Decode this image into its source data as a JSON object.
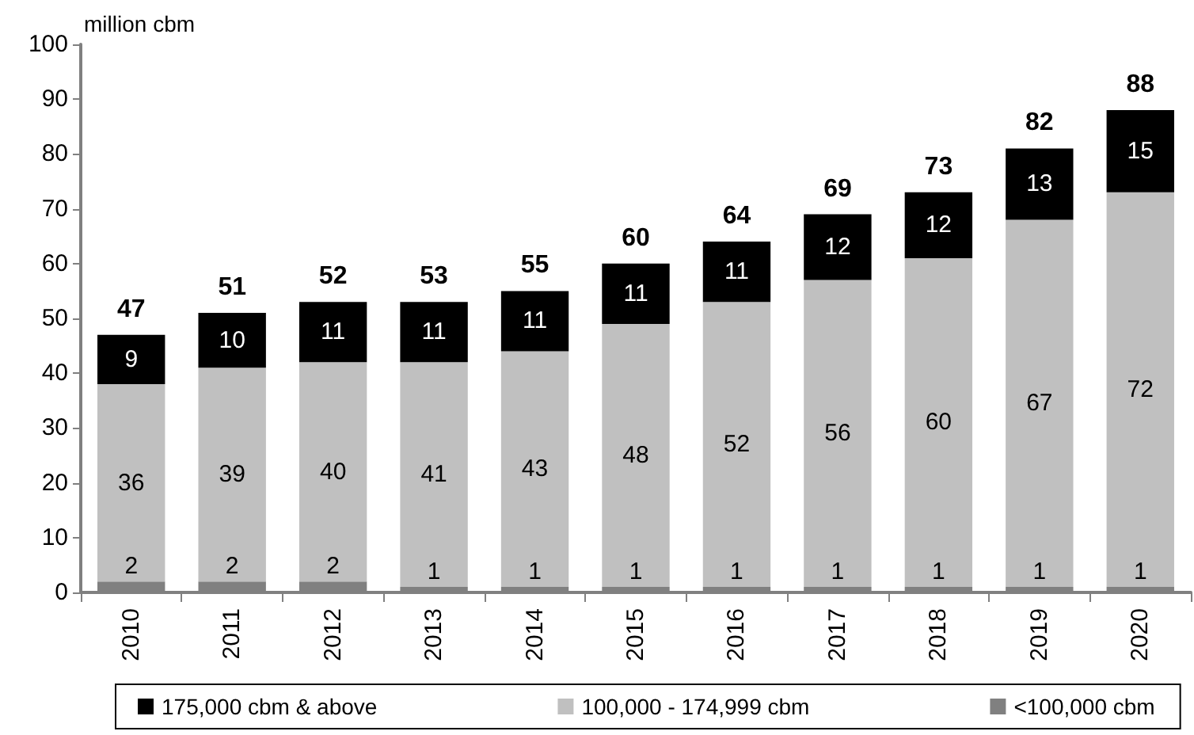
{
  "chart_data": {
    "type": "bar",
    "stacked": true,
    "ylabel": "million cbm",
    "categories": [
      "2010",
      "2011",
      "2012",
      "2013",
      "2014",
      "2015",
      "2016",
      "2017",
      "2018",
      "2019",
      "2020"
    ],
    "series": [
      {
        "name": "<100,000 cbm",
        "color": "#808080",
        "values": [
          2,
          2,
          2,
          1,
          1,
          1,
          1,
          1,
          1,
          1,
          1
        ]
      },
      {
        "name": "100,000 - 174,999 cbm",
        "color": "#c0c0c0",
        "values": [
          36,
          39,
          40,
          41,
          43,
          48,
          52,
          56,
          60,
          67,
          72
        ]
      },
      {
        "name": "175,000 cbm & above",
        "color": "#000000",
        "values": [
          9,
          10,
          11,
          11,
          11,
          11,
          11,
          12,
          12,
          13,
          15
        ]
      }
    ],
    "ylim": [
      0,
      100
    ],
    "yticks": [
      0,
      10,
      20,
      30,
      40,
      50,
      60,
      70,
      80,
      90,
      100
    ],
    "legend": "bottom",
    "data_labels": true,
    "totals": [
      "47",
      "51",
      "52",
      "53",
      "55",
      "60",
      "64",
      "69",
      "73",
      "82",
      "88"
    ]
  }
}
